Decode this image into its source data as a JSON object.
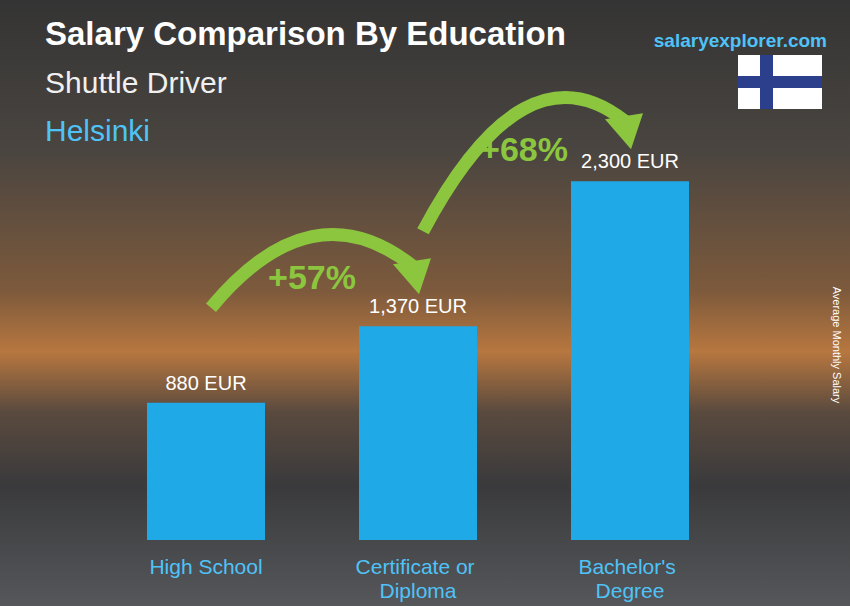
{
  "chart_data": {
    "type": "bar",
    "title": "Salary Comparison By Education",
    "subtitle": "Shuttle Driver",
    "location": "Helsinki",
    "source": "salaryexplorer.com",
    "y_label": "Average Monthly Salary",
    "categories": [
      "High School",
      "Certificate or Diploma",
      "Bachelor's Degree"
    ],
    "values": [
      880,
      1370,
      2300
    ],
    "value_labels": [
      "880 EUR",
      "1,370 EUR",
      "2,300 EUR"
    ],
    "color": "#1fa9e6",
    "ylim": [
      0,
      2500
    ],
    "yticks": [
      0,
      2500
    ],
    "grid": false,
    "data_labels": true,
    "tick_labels": "x",
    "annotations": [
      {
        "text": "+57%",
        "from": "High School",
        "to": "Certificate or Diploma"
      },
      {
        "text": "+68%",
        "from": "Certificate or Diploma",
        "to": "Bachelor's Degree"
      }
    ]
  }
}
